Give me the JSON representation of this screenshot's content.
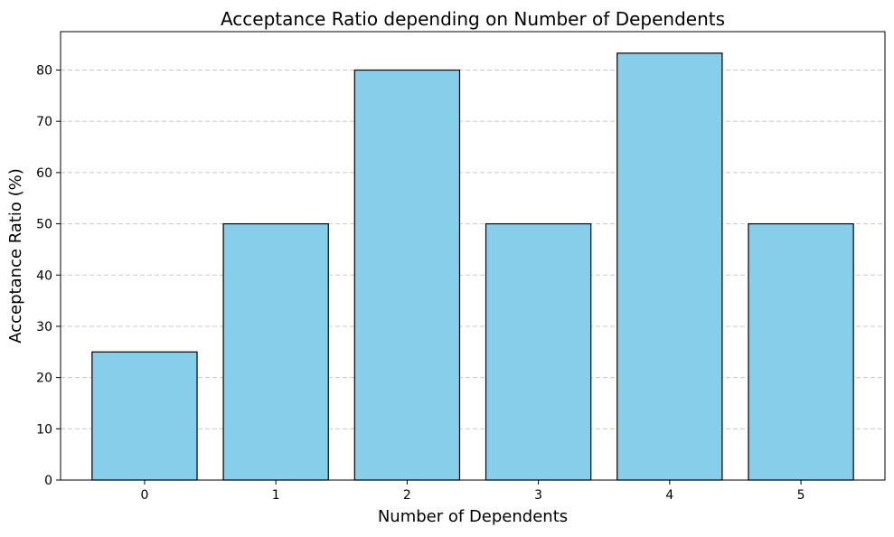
{
  "chart_data": {
    "type": "bar",
    "title": "Acceptance Ratio depending on Number of Dependents",
    "xlabel": "Number of Dependents",
    "ylabel": "Acceptance Ratio (%)",
    "categories": [
      "0",
      "1",
      "2",
      "3",
      "4",
      "5"
    ],
    "values": [
      25.0,
      50.0,
      80.0,
      50.0,
      83.3,
      50.0
    ],
    "ylim": [
      0,
      87.5
    ],
    "yticks": [
      0,
      10,
      20,
      30,
      40,
      50,
      60,
      70,
      80
    ],
    "grid": "y-dashed",
    "legend": "none",
    "bar_color": "#87ceeb",
    "edge_color": "#000000",
    "grid_color": "#c8c8c8"
  }
}
